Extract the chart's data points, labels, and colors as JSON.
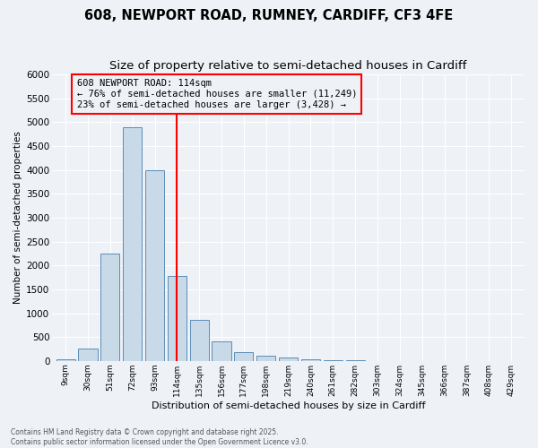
{
  "title1": "608, NEWPORT ROAD, RUMNEY, CARDIFF, CF3 4FE",
  "title2": "Size of property relative to semi-detached houses in Cardiff",
  "xlabel": "Distribution of semi-detached houses by size in Cardiff",
  "ylabel": "Number of semi-detached properties",
  "bar_labels": [
    "9sqm",
    "30sqm",
    "51sqm",
    "72sqm",
    "93sqm",
    "114sqm",
    "135sqm",
    "156sqm",
    "177sqm",
    "198sqm",
    "219sqm",
    "240sqm",
    "261sqm",
    "282sqm",
    "303sqm",
    "324sqm",
    "345sqm",
    "366sqm",
    "387sqm",
    "408sqm",
    "429sqm"
  ],
  "bar_values": [
    30,
    260,
    2250,
    4900,
    4000,
    1780,
    850,
    400,
    185,
    105,
    75,
    35,
    15,
    8,
    4,
    3,
    2,
    1,
    1,
    1,
    0
  ],
  "bar_color": "#c8d9e8",
  "bar_edge_color": "#5b8db8",
  "vline_x": 5,
  "vline_color": "red",
  "annotation_title": "608 NEWPORT ROAD: 114sqm",
  "annotation_line1": "← 76% of semi-detached houses are smaller (11,249)",
  "annotation_line2": "23% of semi-detached houses are larger (3,428) →",
  "annotation_box_color": "red",
  "ylim": [
    0,
    6000
  ],
  "yticks": [
    0,
    500,
    1000,
    1500,
    2000,
    2500,
    3000,
    3500,
    4000,
    4500,
    5000,
    5500,
    6000
  ],
  "footer_line1": "Contains HM Land Registry data © Crown copyright and database right 2025.",
  "footer_line2": "Contains public sector information licensed under the Open Government Licence v3.0.",
  "bg_color": "#eef2f7",
  "grid_color": "#ffffff",
  "title1_fontsize": 10.5,
  "title2_fontsize": 9.5,
  "annotation_fontsize": 7.5
}
